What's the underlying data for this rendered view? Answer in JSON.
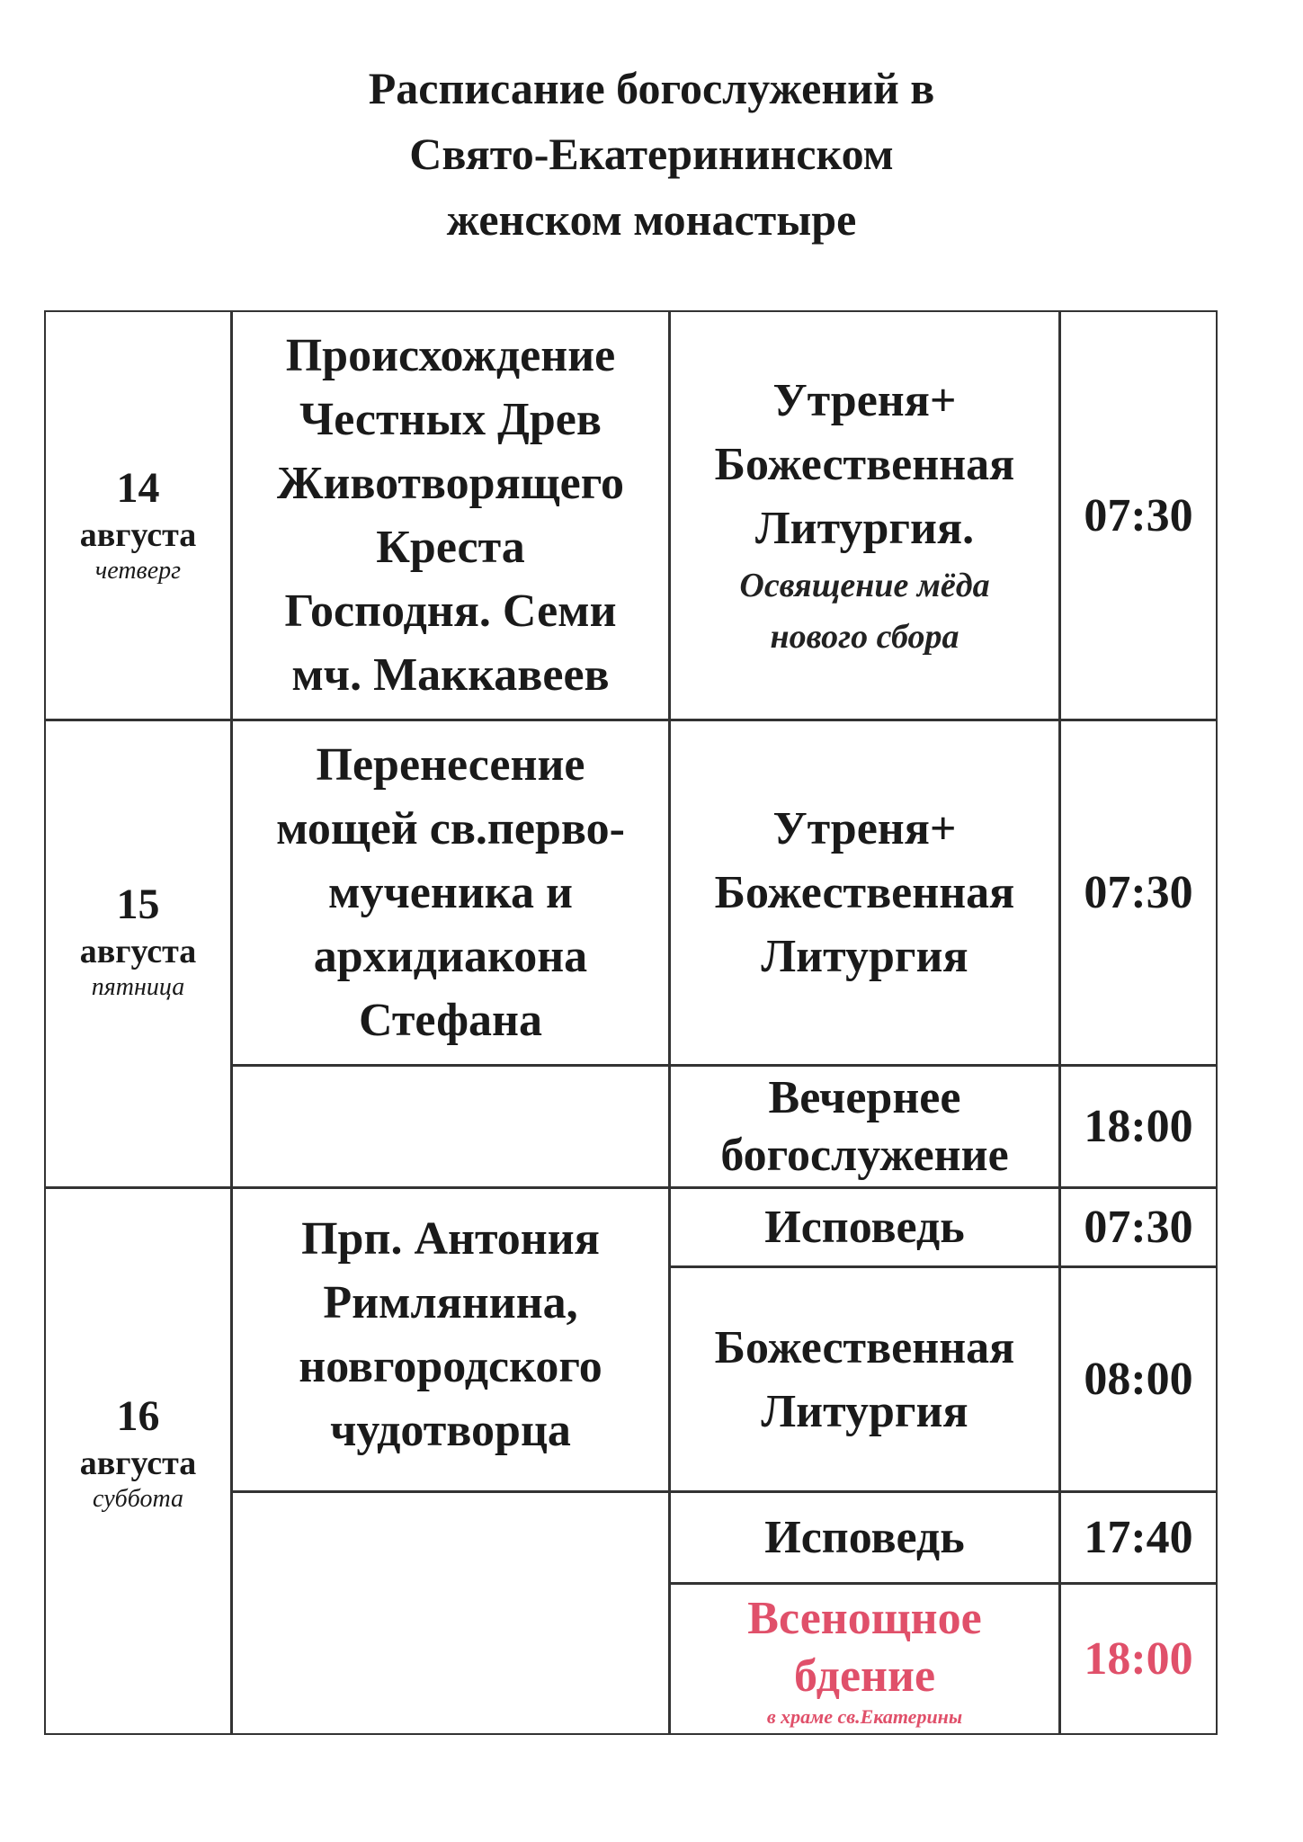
{
  "title": [
    "Расписание богослужений в",
    "Свято-Екатерининском",
    "женском монастыре"
  ],
  "accent_color": "#e0506a",
  "days": [
    {
      "day": "14",
      "month": "августа",
      "weekday": "четверг",
      "feast": [
        "Происхождение",
        "Честных Древ",
        "Животворящего",
        "Креста",
        "Господня. Семи",
        "мч. Маккавеев"
      ]
    },
    {
      "day": "15",
      "month": "августа",
      "weekday": "пятница",
      "feast": [
        "Перенесение",
        "мощей св.перво-",
        "мученика и",
        "архидиакона",
        "Стефана"
      ]
    },
    {
      "day": "16",
      "month": "августа",
      "weekday": "суббота",
      "feast": [
        "Прп. Антония",
        "Римлянина,",
        "новгородского",
        "чудотворца"
      ]
    }
  ],
  "services": [
    {
      "name": [
        "Утреня+",
        "Божественная",
        "Литургия."
      ],
      "note": [
        "Освящение мёда",
        "нового сбора"
      ],
      "time": "07:30"
    },
    {
      "name": [
        "Утреня+",
        "Божественная",
        "Литургия"
      ],
      "time": "07:30"
    },
    {
      "name": [
        "Вечернее",
        "богослужение"
      ],
      "time": "18:00"
    },
    {
      "name": [
        "Исповедь"
      ],
      "time": "07:30"
    },
    {
      "name": [
        "Божественная",
        "Литургия"
      ],
      "time": "08:00"
    },
    {
      "name": [
        "Исповедь"
      ],
      "time": "17:40"
    },
    {
      "name": [
        "Всенощное",
        "бдение"
      ],
      "note": [
        "в храме св.Екатерины"
      ],
      "time": "18:00",
      "highlight": true
    }
  ]
}
